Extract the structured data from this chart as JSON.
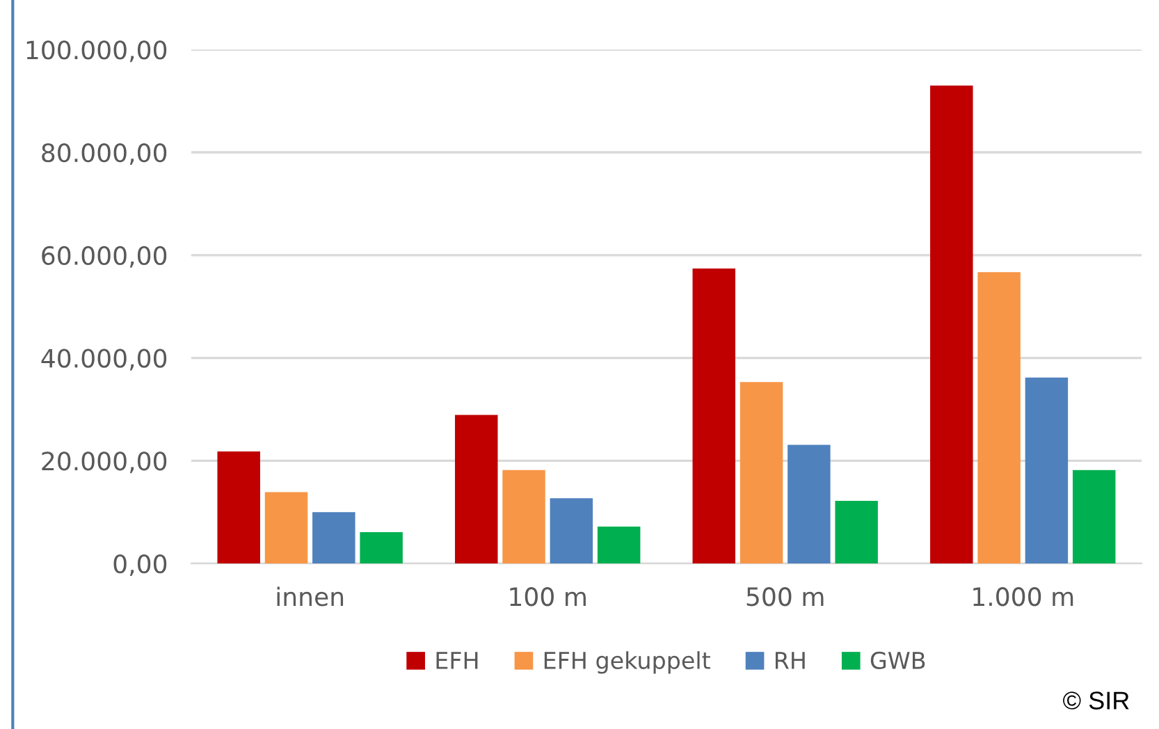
{
  "chart_data": {
    "type": "bar",
    "categories": [
      "innen",
      "100 m",
      "500 m",
      "1.000 m"
    ],
    "series": [
      {
        "name": "EFH",
        "color": "#c00000",
        "values": [
          21800,
          28900,
          57400,
          93000
        ]
      },
      {
        "name": "EFH gekuppelt",
        "color": "#f79646",
        "values": [
          13900,
          18200,
          35300,
          56700
        ]
      },
      {
        "name": "RH",
        "color": "#4f81bd",
        "values": [
          10000,
          12700,
          23100,
          36200
        ]
      },
      {
        "name": "GWB",
        "color": "#00b050",
        "values": [
          6100,
          7200,
          12200,
          18200
        ]
      }
    ],
    "ylim": [
      0,
      100000
    ],
    "yticks": [
      {
        "value": 0,
        "label": "0,00"
      },
      {
        "value": 20000,
        "label": "20.000,00"
      },
      {
        "value": 40000,
        "label": "40.000,00"
      },
      {
        "value": 60000,
        "label": "60.000,00"
      },
      {
        "value": 80000,
        "label": "80.000,00"
      },
      {
        "value": 100000,
        "label": "100.000,00"
      }
    ],
    "grid": "y",
    "legend": "bottom",
    "annotations": [
      "© SIR"
    ]
  }
}
